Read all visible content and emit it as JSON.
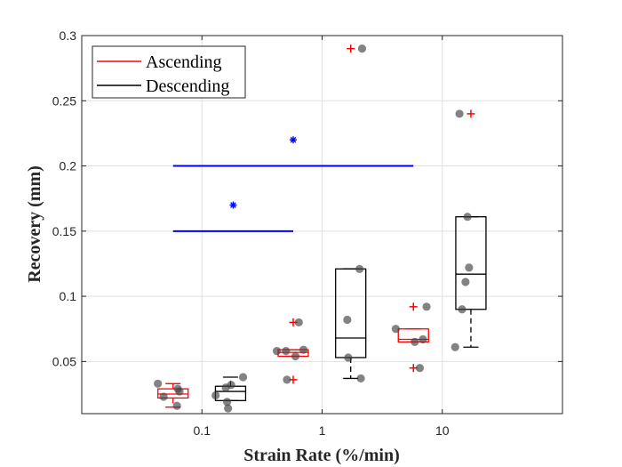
{
  "chart_data": {
    "type": "box",
    "xlabel": "Strain Rate (%/min)",
    "ylabel": "Recovery (mm)",
    "x_scale": "log",
    "xlim": [
      0.01,
      100
    ],
    "ylim": [
      0.01,
      0.3
    ],
    "x_ticks": [
      {
        "value": 0.1,
        "label": "0.1"
      },
      {
        "value": 1,
        "label": "1"
      },
      {
        "value": 10,
        "label": "10"
      }
    ],
    "y_ticks": [
      {
        "value": 0.05,
        "label": "0.05"
      },
      {
        "value": 0.1,
        "label": "0.1"
      },
      {
        "value": 0.15,
        "label": "0.15"
      },
      {
        "value": 0.2,
        "label": "0.2"
      },
      {
        "value": 0.25,
        "label": "0.25"
      },
      {
        "value": 0.3,
        "label": "0.3"
      }
    ],
    "grid": true,
    "legend": {
      "placement": "top-left",
      "entries": [
        {
          "label": "Ascending",
          "color": "#ff0000"
        },
        {
          "label": "Descending",
          "color": "#000000"
        }
      ]
    },
    "series": [
      {
        "name": "Ascending",
        "color": "#ff0000",
        "boxes": [
          {
            "x": 0.0575,
            "q1": 0.022,
            "median": 0.025,
            "q3": 0.029,
            "whisker_low": 0.015,
            "whisker_high": 0.033,
            "outliers": []
          },
          {
            "x": 0.575,
            "q1": 0.054,
            "median": 0.057,
            "q3": 0.059,
            "whisker_low": 0.054,
            "whisker_high": 0.059,
            "outliers": [
              0.08,
              0.036
            ]
          },
          {
            "x": 1.73,
            "q1": null,
            "median": null,
            "q3": null,
            "whisker_low": null,
            "whisker_high": null,
            "outliers": [
              0.29
            ]
          },
          {
            "x": 5.75,
            "q1": 0.065,
            "median": 0.067,
            "q3": 0.075,
            "whisker_low": 0.065,
            "whisker_high": 0.075,
            "outliers": [
              0.092,
              0.045
            ]
          },
          {
            "x": 17.3,
            "q1": null,
            "median": null,
            "q3": null,
            "whisker_low": null,
            "whisker_high": null,
            "outliers": [
              0.24
            ]
          }
        ]
      },
      {
        "name": "Descending",
        "color": "#000000",
        "boxes": [
          {
            "x": 0.173,
            "q1": 0.02,
            "median": 0.027,
            "q3": 0.031,
            "whisker_low": 0.02,
            "whisker_high": 0.038,
            "outliers": []
          },
          {
            "x": 1.73,
            "q1": 0.053,
            "median": 0.068,
            "q3": 0.121,
            "whisker_low": 0.037,
            "whisker_high": 0.121,
            "outliers": []
          },
          {
            "x": 17.3,
            "q1": 0.09,
            "median": 0.117,
            "q3": 0.161,
            "whisker_low": 0.061,
            "whisker_high": 0.161,
            "outliers": []
          }
        ]
      }
    ],
    "scatter_points": [
      {
        "x": 0.043,
        "y": 0.033
      },
      {
        "x": 0.048,
        "y": 0.023
      },
      {
        "x": 0.062,
        "y": 0.016
      },
      {
        "x": 0.063,
        "y": 0.029
      },
      {
        "x": 0.065,
        "y": 0.027
      },
      {
        "x": 0.13,
        "y": 0.024
      },
      {
        "x": 0.158,
        "y": 0.03
      },
      {
        "x": 0.162,
        "y": 0.019
      },
      {
        "x": 0.165,
        "y": 0.014
      },
      {
        "x": 0.175,
        "y": 0.032
      },
      {
        "x": 0.22,
        "y": 0.038
      },
      {
        "x": 0.42,
        "y": 0.058
      },
      {
        "x": 0.5,
        "y": 0.058
      },
      {
        "x": 0.51,
        "y": 0.036
      },
      {
        "x": 0.6,
        "y": 0.054
      },
      {
        "x": 0.64,
        "y": 0.08
      },
      {
        "x": 0.7,
        "y": 0.059
      },
      {
        "x": 1.62,
        "y": 0.082
      },
      {
        "x": 1.65,
        "y": 0.053
      },
      {
        "x": 2.05,
        "y": 0.121
      },
      {
        "x": 2.1,
        "y": 0.037
      },
      {
        "x": 2.15,
        "y": 0.29
      },
      {
        "x": 4.1,
        "y": 0.075
      },
      {
        "x": 5.9,
        "y": 0.065
      },
      {
        "x": 6.5,
        "y": 0.045
      },
      {
        "x": 6.9,
        "y": 0.067
      },
      {
        "x": 7.4,
        "y": 0.092
      },
      {
        "x": 12.8,
        "y": 0.061
      },
      {
        "x": 13.9,
        "y": 0.24
      },
      {
        "x": 14.6,
        "y": 0.09
      },
      {
        "x": 15.6,
        "y": 0.111
      },
      {
        "x": 16.2,
        "y": 0.161
      },
      {
        "x": 16.7,
        "y": 0.122
      }
    ],
    "significance": {
      "color": "#0000ff",
      "bars": [
        {
          "x_start": 0.0575,
          "x_end": 5.75,
          "y": 0.2
        },
        {
          "x_start": 0.0575,
          "x_end": 0.575,
          "y": 0.15
        }
      ],
      "markers": [
        {
          "x": 0.575,
          "y": 0.22
        },
        {
          "x": 0.182,
          "y": 0.17
        }
      ]
    }
  }
}
